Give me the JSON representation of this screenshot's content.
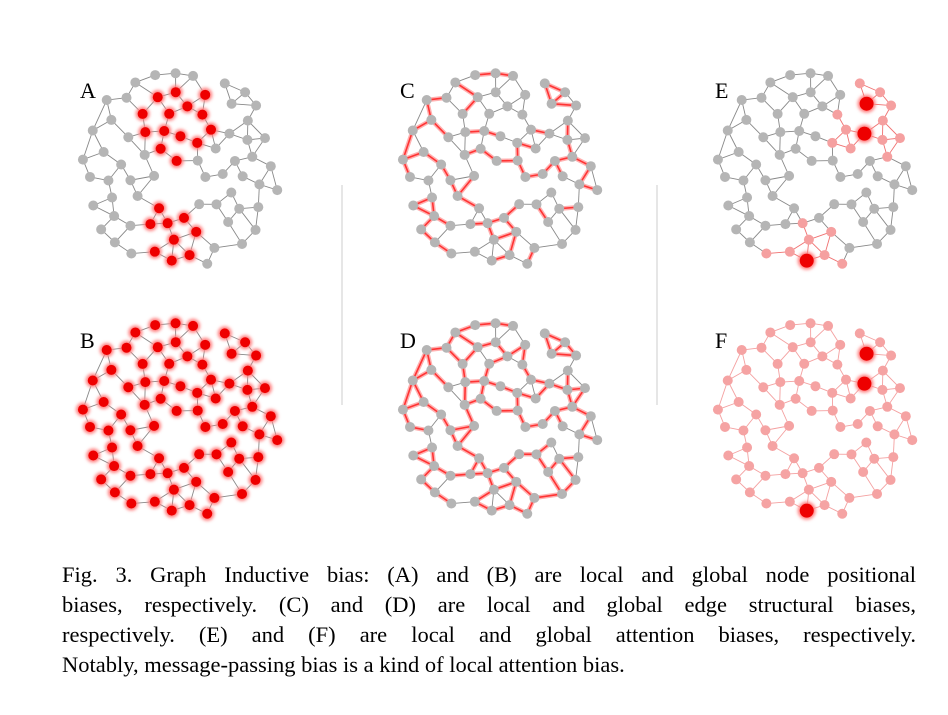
{
  "panels": [
    {
      "label": "A"
    },
    {
      "label": "B"
    },
    {
      "label": "C"
    },
    {
      "label": "D"
    },
    {
      "label": "E"
    },
    {
      "label": "F"
    }
  ],
  "caption": {
    "lines": [
      "Fig. 3.  Graph Inductive bias: (A) and (B) are local and global node positional",
      "biases, respectively. (C) and (D) are local and global edge structural biases,",
      "respectively. (E) and (F) are local and global attention biases, respectively.",
      "Notably, message-passing bias is a kind of local attention bias."
    ]
  }
}
